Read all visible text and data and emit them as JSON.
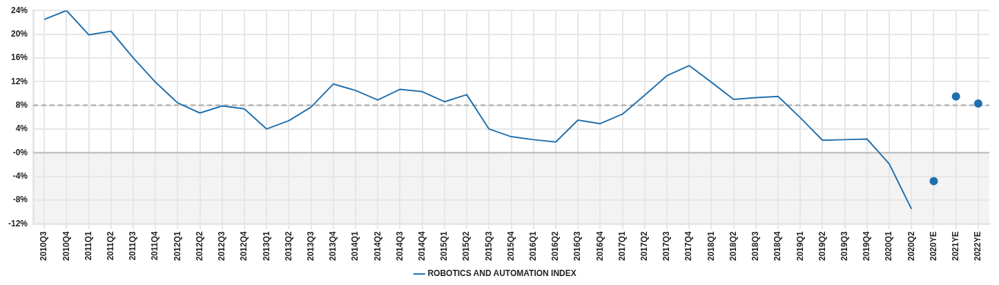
{
  "chart_data": {
    "type": "line",
    "categories": [
      "2010Q3",
      "2010Q4",
      "2011Q1",
      "2011Q2",
      "2011Q3",
      "2011Q4",
      "2012Q1",
      "2012Q2",
      "2012Q3",
      "2012Q4",
      "2013Q1",
      "2013Q2",
      "2013Q3",
      "2013Q4",
      "2014Q1",
      "2014Q2",
      "2014Q3",
      "2014Q4",
      "2015Q1",
      "2015Q2",
      "2015Q3",
      "2015Q4",
      "2016Q1",
      "2016Q2",
      "2016Q3",
      "2016Q4",
      "2017Q1",
      "2017Q2",
      "2017Q3",
      "2017Q4",
      "2018Q1",
      "2018Q2",
      "2018Q3",
      "2018Q4",
      "2019Q1",
      "2019Q2",
      "2019Q3",
      "2019Q4",
      "2020Q1",
      "2020Q2",
      "2020YE",
      "2021YE",
      "2022YE"
    ],
    "series": [
      {
        "name": "ROBOTICS AND AUTOMATION INDEX",
        "type": "line",
        "color": "#1f6fad",
        "marker": "none",
        "values": [
          22.5,
          24.0,
          19.9,
          20.5,
          16.0,
          11.9,
          8.4,
          6.7,
          7.9,
          7.4,
          4.0,
          5.4,
          7.7,
          11.6,
          10.5,
          8.9,
          10.7,
          10.3,
          8.6,
          9.8,
          4.0,
          2.7,
          2.2,
          1.8,
          5.5,
          4.9,
          6.5,
          9.7,
          13.0,
          14.7,
          11.9,
          9.0,
          9.3,
          9.5,
          5.9,
          2.1,
          2.2,
          2.3,
          -1.9,
          -9.5,
          null,
          null,
          null
        ]
      },
      {
        "type": "scatter",
        "color": "#1f6fad",
        "marker": "circle",
        "values": [
          null,
          null,
          null,
          null,
          null,
          null,
          null,
          null,
          null,
          null,
          null,
          null,
          null,
          null,
          null,
          null,
          null,
          null,
          null,
          null,
          null,
          null,
          null,
          null,
          null,
          null,
          null,
          null,
          null,
          null,
          null,
          null,
          null,
          null,
          null,
          null,
          null,
          null,
          null,
          null,
          -4.8,
          9.5,
          8.3
        ]
      }
    ],
    "ylim": [
      -12,
      24
    ],
    "yticks": [
      {
        "value": -12,
        "label": "-12%"
      },
      {
        "value": -8,
        "label": "-8%"
      },
      {
        "value": -4,
        "label": "-4%"
      },
      {
        "value": 0,
        "label": "-0%"
      },
      {
        "value": 4,
        "label": "4%"
      },
      {
        "value": 8,
        "label": "8%"
      },
      {
        "value": 12,
        "label": "12%"
      },
      {
        "value": 16,
        "label": "16%"
      },
      {
        "value": 20,
        "label": "20%"
      },
      {
        "value": 24,
        "label": "24%"
      }
    ],
    "grid": true,
    "legend": "bottom",
    "ref_lines": [
      {
        "axis": "y",
        "value": 8,
        "color": "#b5b5b5",
        "line_style": "dashed"
      },
      {
        "axis": "y",
        "value": 0,
        "color": "#c4c4c4",
        "line_style": "solid"
      }
    ],
    "bands": [
      {
        "axis": "y",
        "from": -12,
        "to": 0,
        "color": "#f3f3f3"
      }
    ]
  }
}
